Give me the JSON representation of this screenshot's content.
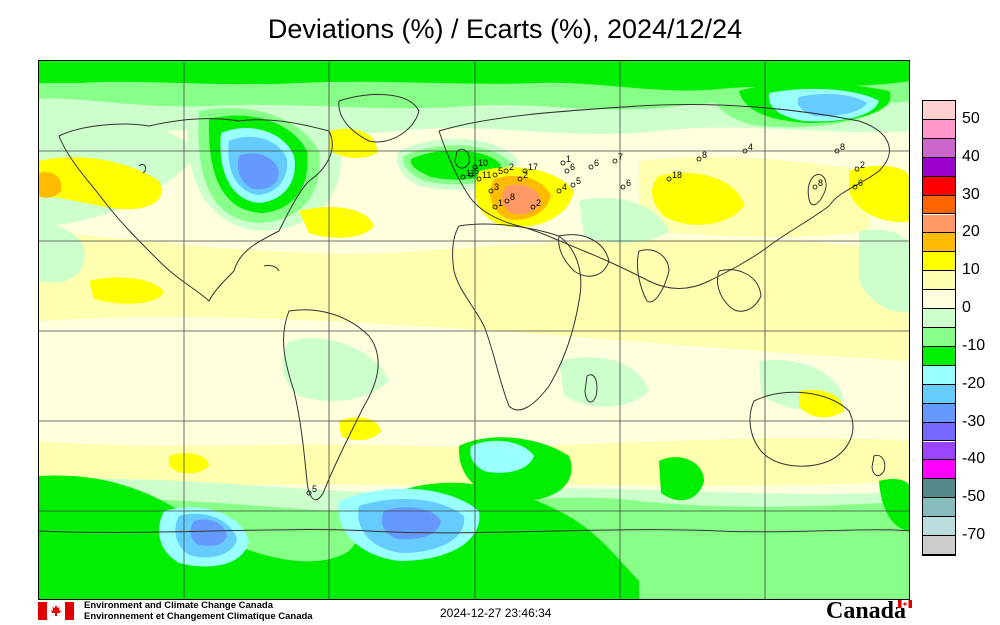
{
  "title": "Deviations (%) / Ecarts (%), 2024/12/24",
  "legend": {
    "labels": [
      "50",
      "40",
      "30",
      "20",
      "10",
      "0",
      "-10",
      "-20",
      "-30",
      "-40",
      "-50",
      "-70"
    ],
    "colors": [
      "#ffd0d0",
      "#ff99cc",
      "#cc66cc",
      "#9900cc",
      "#ff0000",
      "#ff6600",
      "#ff9966",
      "#ffbb00",
      "#ffff00",
      "#ffffb0",
      "#ffffdd",
      "#ccffcc",
      "#88ff88",
      "#00ee00",
      "#99ffff",
      "#66ccff",
      "#6699ff",
      "#7766ff",
      "#9944ff",
      "#ff00ff",
      "#558888",
      "#88bbbb",
      "#bbdddd",
      "#cccccc"
    ]
  },
  "stations": [
    {
      "label": "10"
    },
    {
      "label": "6"
    },
    {
      "label": "11"
    },
    {
      "label": "5"
    },
    {
      "label": "11"
    },
    {
      "label": "2"
    },
    {
      "label": "17"
    },
    {
      "label": "2"
    },
    {
      "label": "1"
    },
    {
      "label": "6"
    },
    {
      "label": "6"
    },
    {
      "label": "7"
    },
    {
      "label": "5"
    },
    {
      "label": "3"
    },
    {
      "label": "8"
    },
    {
      "label": "4"
    },
    {
      "label": "1"
    },
    {
      "label": "2"
    },
    {
      "label": "6"
    },
    {
      "label": "18"
    },
    {
      "label": "8"
    },
    {
      "label": "4"
    },
    {
      "label": "8"
    },
    {
      "label": "2"
    },
    {
      "label": "6"
    },
    {
      "label": "8"
    },
    {
      "label": "5"
    }
  ],
  "footer": {
    "org_en": "Environment and Climate Change Canada",
    "org_fr": "Environnement et Changement Climatique Canada",
    "timestamp": "2024-12-27 23:46:34",
    "wordmark": "Canada"
  },
  "colors": {
    "background": "#ffffdd",
    "land_outline": "#333333",
    "grid": "#444444"
  }
}
